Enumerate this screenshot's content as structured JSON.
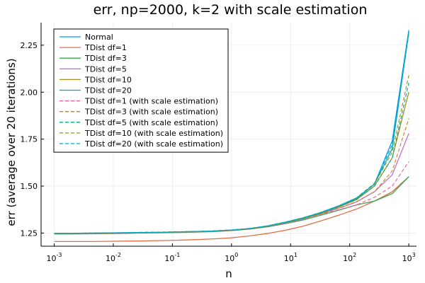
{
  "chart_data": {
    "type": "line",
    "title": "err, np=2000, k=2 with scale estimation",
    "xlabel": "n",
    "ylabel": "err (average over 20 iterations)",
    "xscale": "log10",
    "xlim": [
      0.0006,
      1350
    ],
    "ylim": [
      1.18,
      2.37
    ],
    "xticks": [
      {
        "value": 0.001,
        "exp": "-3"
      },
      {
        "value": 0.01,
        "exp": "-2"
      },
      {
        "value": 0.1,
        "exp": "-1"
      },
      {
        "value": 1,
        "exp": "0"
      },
      {
        "value": 10,
        "exp": "1"
      },
      {
        "value": 100,
        "exp": "2"
      },
      {
        "value": 1000,
        "exp": "3"
      }
    ],
    "yticks": [
      {
        "value": 1.25,
        "label": "1.25"
      },
      {
        "value": 1.5,
        "label": "1.50"
      },
      {
        "value": 1.75,
        "label": "1.75"
      },
      {
        "value": 2.0,
        "label": "2.00"
      },
      {
        "value": 2.25,
        "label": "2.25"
      }
    ],
    "grid": true,
    "legend_position": "top-left",
    "x": [
      0.001,
      0.002,
      0.004,
      0.008,
      0.016,
      0.032,
      0.064,
      0.128,
      0.256,
      0.512,
      1.024,
      2.048,
      4.096,
      8.192,
      16.384,
      32.768,
      65.536,
      131.072,
      262.144,
      524.288,
      1000
    ],
    "series": [
      {
        "name": "Normal",
        "color": "#009AFA",
        "dash": false,
        "values": [
          1.248,
          1.249,
          1.25,
          1.251,
          1.252,
          1.253,
          1.254,
          1.256,
          1.258,
          1.261,
          1.266,
          1.274,
          1.288,
          1.308,
          1.331,
          1.36,
          1.395,
          1.437,
          1.51,
          1.74,
          2.33
        ]
      },
      {
        "name": "TDist df=1",
        "color": "#E36F47",
        "dash": false,
        "values": [
          1.205,
          1.205,
          1.205,
          1.206,
          1.207,
          1.208,
          1.21,
          1.212,
          1.215,
          1.219,
          1.225,
          1.235,
          1.248,
          1.265,
          1.287,
          1.315,
          1.345,
          1.378,
          1.42,
          1.47,
          1.55
        ]
      },
      {
        "name": "TDist df=3",
        "color": "#3EA44E",
        "dash": false,
        "values": [
          1.245,
          1.245,
          1.246,
          1.247,
          1.248,
          1.25,
          1.251,
          1.253,
          1.255,
          1.258,
          1.263,
          1.271,
          1.283,
          1.3,
          1.32,
          1.345,
          1.372,
          1.4,
          1.42,
          1.46,
          1.55
        ]
      },
      {
        "name": "TDist df=5",
        "color": "#C270D2",
        "dash": false,
        "values": [
          1.246,
          1.246,
          1.247,
          1.248,
          1.249,
          1.251,
          1.252,
          1.254,
          1.256,
          1.259,
          1.264,
          1.272,
          1.285,
          1.303,
          1.325,
          1.352,
          1.382,
          1.416,
          1.47,
          1.56,
          1.78
        ]
      },
      {
        "name": "TDist df=10",
        "color": "#AC8E18",
        "dash": false,
        "values": [
          1.247,
          1.247,
          1.248,
          1.249,
          1.25,
          1.252,
          1.253,
          1.255,
          1.257,
          1.26,
          1.265,
          1.273,
          1.286,
          1.305,
          1.328,
          1.356,
          1.389,
          1.428,
          1.5,
          1.65,
          2.0
        ]
      },
      {
        "name": "TDist df=20",
        "color": "#00A9AD",
        "dash": false,
        "values": [
          1.248,
          1.248,
          1.249,
          1.25,
          1.251,
          1.253,
          1.254,
          1.256,
          1.258,
          1.261,
          1.266,
          1.274,
          1.287,
          1.307,
          1.33,
          1.358,
          1.392,
          1.433,
          1.51,
          1.7,
          2.32
        ]
      },
      {
        "name": "TDist df=1  (with scale estimation)",
        "color": "#ED5D92",
        "dash": true,
        "values": [
          1.248,
          1.249,
          1.25,
          1.251,
          1.252,
          1.254,
          1.255,
          1.257,
          1.259,
          1.262,
          1.267,
          1.275,
          1.288,
          1.306,
          1.327,
          1.35,
          1.374,
          1.4,
          1.44,
          1.5,
          1.63
        ]
      },
      {
        "name": "TDist df=3  (with scale estimation)",
        "color": "#C68125",
        "dash": true,
        "values": [
          1.247,
          1.248,
          1.249,
          1.25,
          1.251,
          1.253,
          1.254,
          1.256,
          1.258,
          1.261,
          1.266,
          1.274,
          1.287,
          1.305,
          1.327,
          1.353,
          1.383,
          1.418,
          1.47,
          1.58,
          1.86
        ]
      },
      {
        "name": "TDist df=5  (with scale estimation)",
        "color": "#00A98D",
        "dash": true,
        "values": [
          1.247,
          1.248,
          1.249,
          1.25,
          1.251,
          1.253,
          1.254,
          1.256,
          1.258,
          1.261,
          1.266,
          1.274,
          1.287,
          1.306,
          1.329,
          1.357,
          1.39,
          1.43,
          1.5,
          1.65,
          2.05
        ]
      },
      {
        "name": "TDist df=10 (with scale estimation)",
        "color": "#8E971E",
        "dash": true,
        "values": [
          1.248,
          1.249,
          1.25,
          1.251,
          1.252,
          1.254,
          1.255,
          1.257,
          1.259,
          1.262,
          1.267,
          1.275,
          1.288,
          1.308,
          1.331,
          1.36,
          1.394,
          1.436,
          1.51,
          1.68,
          2.09
        ]
      },
      {
        "name": "TDist df=20 (with scale estimation)",
        "color": "#00A8CB",
        "dash": true,
        "values": [
          1.248,
          1.249,
          1.25,
          1.251,
          1.252,
          1.254,
          1.255,
          1.257,
          1.259,
          1.262,
          1.267,
          1.275,
          1.289,
          1.309,
          1.332,
          1.361,
          1.396,
          1.438,
          1.515,
          1.72,
          2.31
        ]
      }
    ]
  }
}
